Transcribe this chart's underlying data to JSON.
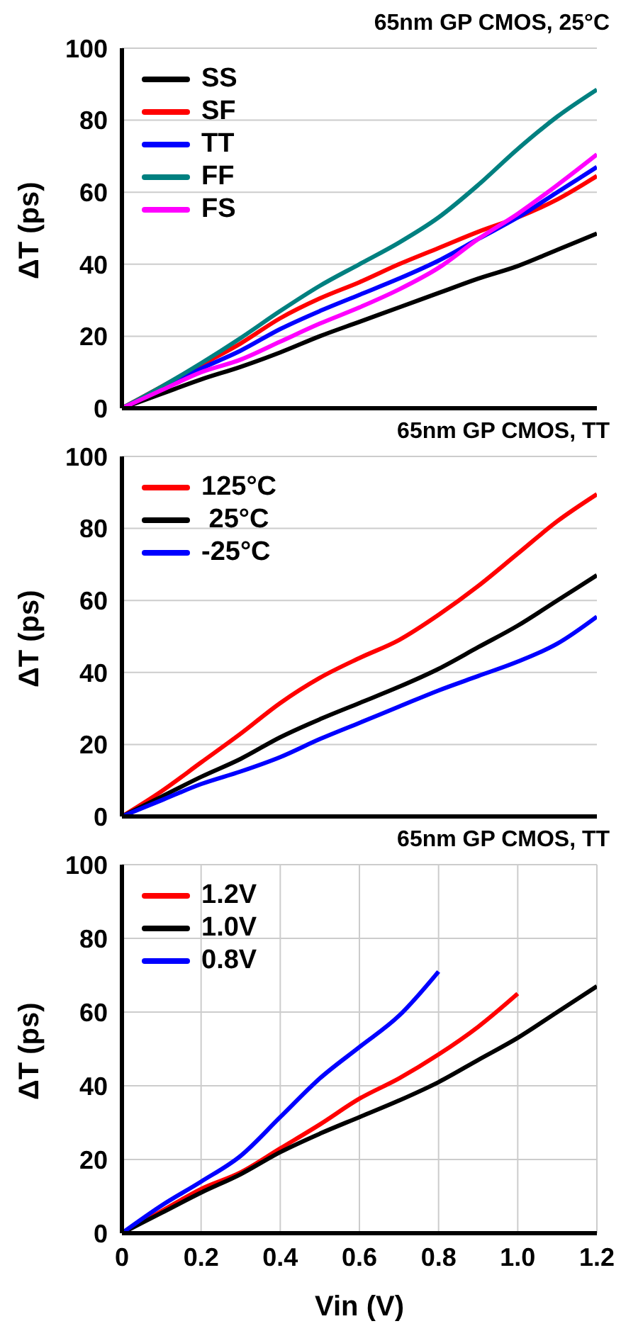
{
  "chart_data": [
    {
      "type": "line",
      "title": "65nm GP CMOS, 25°C",
      "ylabel": "ΔT (ps)",
      "xlim": [
        0,
        1.2
      ],
      "ylim": [
        0,
        100
      ],
      "xticks": [
        0,
        0.2,
        0.4,
        0.6,
        0.8,
        1,
        1.2
      ],
      "yticks": [
        0,
        20,
        40,
        60,
        80,
        100
      ],
      "grid": true,
      "legend": "top left",
      "tick_labels": "y",
      "marker": "none",
      "line_style": "solid",
      "x": [
        0,
        0.1,
        0.2,
        0.3,
        0.4,
        0.5,
        0.6,
        0.7,
        0.8,
        0.9,
        1.0,
        1.1,
        1.2
      ],
      "series": [
        {
          "name": "SS",
          "color": "#000000",
          "values": [
            0,
            4,
            8,
            11.5,
            15.5,
            20,
            24,
            28,
            32,
            36,
            39.5,
            44,
            48.5
          ]
        },
        {
          "name": "SF",
          "color": "#ff0000",
          "values": [
            0,
            6,
            12,
            18,
            25,
            30.5,
            35,
            40,
            44.5,
            49,
            53,
            58,
            64.5
          ]
        },
        {
          "name": "TT",
          "color": "#0000ff",
          "values": [
            0,
            5.5,
            11,
            16,
            22,
            27,
            31.5,
            36,
            41,
            47,
            53,
            60,
            67
          ]
        },
        {
          "name": "FF",
          "color": "#008080",
          "values": [
            0,
            6,
            12.5,
            19.5,
            27,
            34,
            40,
            46,
            53,
            62,
            72,
            81,
            88.5
          ]
        },
        {
          "name": "FS",
          "color": "#ff00ff",
          "values": [
            0,
            5,
            10,
            13.5,
            18.5,
            23.5,
            28,
            33,
            39,
            47,
            54,
            62,
            70.5
          ]
        }
      ]
    },
    {
      "type": "line",
      "title": "65nm GP CMOS, TT",
      "ylabel": "ΔT (ps)",
      "xlim": [
        0,
        1.2
      ],
      "ylim": [
        0,
        100
      ],
      "xticks": [
        0,
        0.2,
        0.4,
        0.6,
        0.8,
        1,
        1.2
      ],
      "yticks": [
        0,
        20,
        40,
        60,
        80,
        100
      ],
      "grid": true,
      "legend": "top left",
      "tick_labels": "y",
      "marker": "none",
      "line_style": "solid",
      "x": [
        0,
        0.1,
        0.2,
        0.3,
        0.4,
        0.5,
        0.6,
        0.7,
        0.8,
        0.9,
        1.0,
        1.1,
        1.2
      ],
      "series": [
        {
          "name": "125°C",
          "color": "#ff0000",
          "values": [
            0,
            7,
            15,
            23,
            31.5,
            38.5,
            44,
            49,
            56,
            64,
            73,
            82,
            89.5
          ]
        },
        {
          "name": " 25°C",
          "color": "#000000",
          "values": [
            0,
            5.5,
            11,
            16,
            22,
            27,
            31.5,
            36,
            41,
            47,
            53,
            60,
            67
          ]
        },
        {
          "name": "-25°C",
          "color": "#0000ff",
          "values": [
            0,
            4.5,
            9,
            12.5,
            16.5,
            21.5,
            26,
            30.5,
            35,
            39,
            43,
            48,
            55.5
          ]
        }
      ]
    },
    {
      "type": "line",
      "title": "65nm GP CMOS, TT",
      "xlabel": "Vin (V)",
      "ylabel": "ΔT (ps)",
      "xlim": [
        0,
        1.2
      ],
      "ylim": [
        0,
        100
      ],
      "xticks": [
        0,
        0.2,
        0.4,
        0.6,
        0.8,
        {
          "value": 1,
          "label": "1.0"
        },
        1.2
      ],
      "yticks": [
        0,
        20,
        40,
        60,
        80,
        100
      ],
      "grid": true,
      "legend": "top left",
      "marker": "none",
      "line_style": "solid",
      "series": [
        {
          "name": "1.2V",
          "color": "#ff0000",
          "x": [
            0,
            0.1,
            0.2,
            0.3,
            0.4,
            0.5,
            0.6,
            0.7,
            0.8,
            0.9,
            1.0
          ],
          "values": [
            0,
            6,
            12,
            16.5,
            23,
            29.5,
            36.5,
            42,
            48.5,
            56,
            65
          ]
        },
        {
          "name": "1.0V",
          "color": "#000000",
          "x": [
            0,
            0.1,
            0.2,
            0.3,
            0.4,
            0.5,
            0.6,
            0.7,
            0.8,
            0.9,
            1.0,
            1.1,
            1.2
          ],
          "values": [
            0,
            5.5,
            11,
            16,
            22,
            27,
            31.5,
            36,
            41,
            47,
            53,
            60,
            67
          ]
        },
        {
          "name": "0.8V",
          "color": "#0000ff",
          "x": [
            0,
            0.1,
            0.2,
            0.3,
            0.4,
            0.5,
            0.6,
            0.7,
            0.8
          ],
          "values": [
            0,
            7.5,
            14,
            21,
            31.5,
            42,
            50.5,
            59,
            71
          ]
        }
      ]
    }
  ]
}
